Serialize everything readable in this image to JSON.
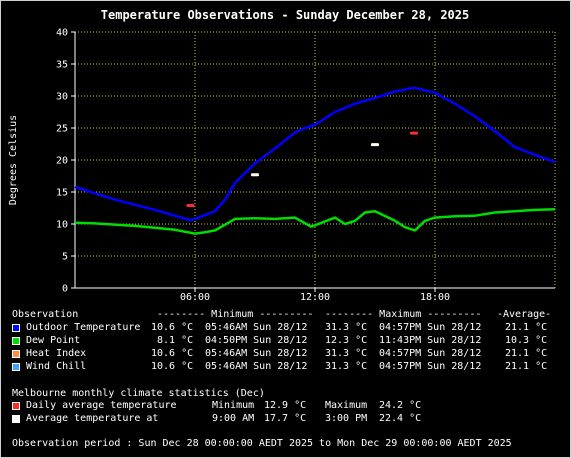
{
  "chart_data": {
    "type": "line",
    "title": "Temperature Observations - Sunday December 28, 2025",
    "ylabel": "Degrees Celsius",
    "xlabel": "",
    "ylim": [
      0,
      40
    ],
    "yticks": [
      0,
      5,
      10,
      15,
      20,
      25,
      30,
      35,
      40
    ],
    "xlim_hours": [
      0,
      24
    ],
    "xticks": [
      {
        "hour": 6,
        "label": "06:00"
      },
      {
        "hour": 12,
        "label": "12:00"
      },
      {
        "hour": 18,
        "label": "18:00"
      }
    ],
    "grid": true,
    "background": "#000000",
    "grid_color": "#c8c84a",
    "series": [
      {
        "name": "Outdoor Temperature",
        "color": "#0000ff",
        "x": [
          0,
          1,
          2,
          3,
          4,
          5,
          5.77,
          6,
          7,
          7.5,
          8,
          9,
          10,
          11,
          11.5,
          12,
          13,
          14,
          15,
          16,
          16.95,
          18,
          19,
          20,
          21,
          22,
          23,
          24
        ],
        "y": [
          15.8,
          14.8,
          13.8,
          13.0,
          12.2,
          11.3,
          10.6,
          10.8,
          12.0,
          13.8,
          16.4,
          19.5,
          21.8,
          24.3,
          25.0,
          25.5,
          27.5,
          28.8,
          29.7,
          30.7,
          31.3,
          30.5,
          28.8,
          26.8,
          24.5,
          22.0,
          20.8,
          19.7
        ]
      },
      {
        "name": "Dew Point",
        "color": "#00dd00",
        "x": [
          0,
          1,
          2,
          3,
          4,
          5,
          6,
          6.5,
          7,
          8,
          9,
          10,
          11,
          11.8,
          12,
          13,
          13.5,
          14,
          14.5,
          15,
          16,
          16.5,
          17,
          17.5,
          18,
          19,
          20,
          21,
          22,
          23,
          24
        ],
        "y": [
          10.2,
          10.1,
          9.9,
          9.7,
          9.4,
          9.1,
          8.5,
          8.7,
          9.0,
          10.8,
          10.9,
          10.8,
          11.0,
          9.6,
          9.8,
          11.0,
          10.0,
          10.5,
          11.8,
          12.0,
          10.5,
          9.5,
          9.0,
          10.5,
          11.0,
          11.2,
          11.3,
          11.8,
          12.0,
          12.2,
          12.3
        ]
      }
    ],
    "markers": [
      {
        "label": "Daily average temperature",
        "color": "#ff2a2a",
        "points": [
          {
            "x": 5.77,
            "y": 12.9
          },
          {
            "x": 16.95,
            "y": 24.2
          }
        ]
      },
      {
        "label": "Average temperature at",
        "color": "#ffffff",
        "points": [
          {
            "x": 9.0,
            "y": 17.7
          },
          {
            "x": 15.0,
            "y": 22.4
          }
        ]
      }
    ]
  },
  "stats": {
    "header": {
      "observation": "Observation",
      "minimum": "-------- Minimum ---------",
      "maximum": "-------- Maximum ---------",
      "average": "-Average-"
    },
    "rows": [
      {
        "name": "Outdoor Temperature",
        "color": "#0000ff",
        "min": "10.6 °C",
        "min_time": "05:46AM Sun 28/12",
        "max": "31.3 °C",
        "max_time": "04:57PM Sun 28/12",
        "avg": "21.1 °C"
      },
      {
        "name": "Dew Point",
        "color": "#00dd00",
        "min": " 8.1 °C",
        "min_time": "04:50PM Sun 28/12",
        "max": "12.3 °C",
        "max_time": "11:43PM Sun 28/12",
        "avg": "10.3 °C"
      },
      {
        "name": "Heat Index",
        "color": "#ff8c40",
        "min": "10.6 °C",
        "min_time": "05:46AM Sun 28/12",
        "max": "31.3 °C",
        "max_time": "04:57PM Sun 28/12",
        "avg": "21.1 °C"
      },
      {
        "name": "Wind Chill",
        "color": "#40a0ff",
        "min": "10.6 °C",
        "min_time": "05:46AM Sun 28/12",
        "max": "31.3 °C",
        "max_time": "04:57PM Sun 28/12",
        "avg": "21.1 °C"
      }
    ]
  },
  "climate": {
    "heading": "Melbourne monthly climate statistics (Dec)",
    "daily_avg": {
      "label": "Daily average temperature",
      "color": "#ff2a2a",
      "min_label": "Minimum",
      "min_value": "12.9 °C",
      "max_label": "Maximum",
      "max_value": "24.2 °C"
    },
    "avg_at": {
      "label": "Average temperature at",
      "color": "#ffffff",
      "t1": "9:00 AM",
      "v1": "17.7 °C",
      "t2": "3:00 PM",
      "v2": "22.4 °C"
    }
  },
  "period": "Observation period : Sun Dec 28 00:00:00 AEDT 2025 to Mon Dec 29 00:00:00 AEDT 2025"
}
